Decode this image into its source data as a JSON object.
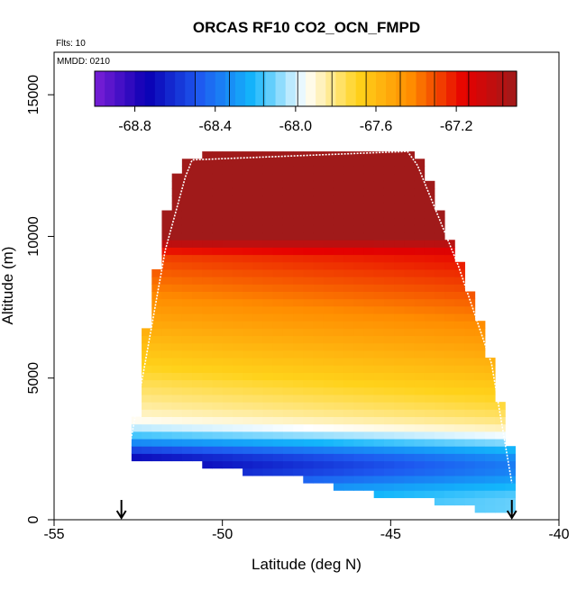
{
  "chart_data": {
    "type": "heatmap",
    "title": "ORCAS RF10 CO2_OCN_FMPD",
    "info_lines": [
      "Flts: 10",
      "MMDD: 0210"
    ],
    "xlabel": "Latitude (deg N)",
    "ylabel": "Altitude (m)",
    "xlim": [
      -55,
      -40
    ],
    "ylim": [
      0,
      16500
    ],
    "x_ticks": [
      -55,
      -50,
      -45,
      -40
    ],
    "x_tick_labels": [
      "-55",
      "-50",
      "-45",
      "-40"
    ],
    "y_ticks": [
      0,
      5000,
      10000,
      15000
    ],
    "y_tick_labels": [
      "0",
      "5000",
      "10000",
      "15000"
    ],
    "colorbar": {
      "min": -69.0,
      "max": -66.9,
      "ticks": [
        -68.8,
        -68.4,
        -68.0,
        -67.6,
        -67.2
      ],
      "tick_labels": [
        "-68.8",
        "-68.4",
        "-68.0",
        "-67.6",
        "-67.2"
      ],
      "colors": [
        "#7b1fd6",
        "#0a00b4",
        "#1e5af0",
        "#13b6fb",
        "#ffffff",
        "#ffd21a",
        "#ff8c00",
        "#e60000",
        "#a01a1a"
      ]
    },
    "field": {
      "min_value": -68.9,
      "max_value": -67.0,
      "bottom_boundary": [
        {
          "lat": -52.8,
          "alt": 2200
        },
        {
          "lat": -51.5,
          "alt": 2100
        },
        {
          "lat": -50.0,
          "alt": 1800
        },
        {
          "lat": -48.0,
          "alt": 1500
        },
        {
          "lat": -46.0,
          "alt": 1000
        },
        {
          "lat": -44.0,
          "alt": 700
        },
        {
          "lat": -42.0,
          "alt": 300
        },
        {
          "lat": -41.2,
          "alt": 200
        }
      ],
      "left_boundary": [
        {
          "alt": 2200,
          "lat": -52.8
        },
        {
          "alt": 3800,
          "lat": -52.5
        },
        {
          "alt": 5500,
          "lat": -52.4
        },
        {
          "alt": 7300,
          "lat": -52.2
        },
        {
          "alt": 9000,
          "lat": -51.9
        },
        {
          "alt": 11400,
          "lat": -51.6
        },
        {
          "alt": 12700,
          "lat": -51.2
        },
        {
          "alt": 12950,
          "lat": -50.3
        }
      ],
      "right_boundary": [
        {
          "alt": 12950,
          "lat": -44.3
        },
        {
          "alt": 12400,
          "lat": -44.0
        },
        {
          "alt": 10000,
          "lat": -43.3
        },
        {
          "alt": 8000,
          "lat": -42.6
        },
        {
          "alt": 5500,
          "lat": -42.0
        },
        {
          "alt": 3000,
          "lat": -41.5
        },
        {
          "alt": 1300,
          "lat": -41.3
        },
        {
          "alt": 200,
          "lat": -41.2
        }
      ]
    },
    "flight_track": [
      {
        "lat": -52.8,
        "alt": 2300
      },
      {
        "lat": -52.3,
        "alt": 5500
      },
      {
        "lat": -51.7,
        "alt": 9500
      },
      {
        "lat": -51.1,
        "alt": 12100
      },
      {
        "lat": -50.9,
        "alt": 12700
      },
      {
        "lat": -44.5,
        "alt": 13000
      },
      {
        "lat": -44.2,
        "alt": 12500
      },
      {
        "lat": -43.0,
        "alt": 9000
      },
      {
        "lat": -42.0,
        "alt": 5500
      },
      {
        "lat": -41.4,
        "alt": 1300
      }
    ],
    "arrows_lat": [
      -53.0,
      -41.4
    ]
  }
}
